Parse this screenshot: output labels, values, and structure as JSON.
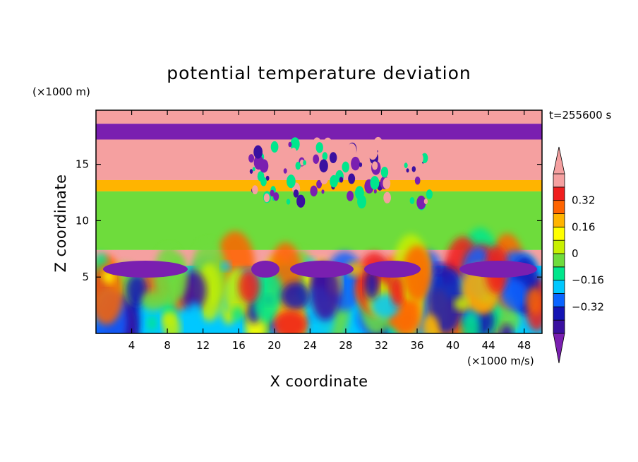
{
  "chart_data": {
    "type": "heatmap",
    "title": "potential temperature deviation",
    "xlabel": "X coordinate",
    "ylabel": "Z coordinate",
    "x_unit": "(×1000 m/s)",
    "y_unit": "(×1000 m)",
    "time_label": "t=255600 s",
    "xlim": [
      0,
      50
    ],
    "ylim": [
      0,
      19.8
    ],
    "x_ticks": [
      4,
      8,
      12,
      16,
      20,
      24,
      28,
      32,
      36,
      40,
      44,
      48
    ],
    "y_ticks": [
      5,
      10,
      15
    ],
    "colorbar": {
      "levels": [
        -0.48,
        -0.4,
        -0.32,
        -0.24,
        -0.16,
        -0.08,
        0,
        0.08,
        0.16,
        0.24,
        0.32,
        0.4,
        0.48
      ],
      "tick_labels": [
        {
          "value": 0.32,
          "label": "0.32"
        },
        {
          "value": 0.16,
          "label": "0.16"
        },
        {
          "value": 0,
          "label": "0"
        },
        {
          "value": -0.16,
          "label": "−0.16"
        },
        {
          "value": -0.32,
          "label": "−0.32"
        }
      ],
      "colors": [
        "#7a1fb0",
        "#3a10a0",
        "#1414b4",
        "#0a64ff",
        "#00c8ff",
        "#00e68c",
        "#6edc3c",
        "#c8f000",
        "#ffff00",
        "#ffb400",
        "#ff6400",
        "#f01e1e",
        "#f5a0a0"
      ],
      "extend": "both",
      "orientation": "vertical"
    },
    "field_description_bands": [
      {
        "z": [
          18.6,
          19.8
        ],
        "value": 0.5
      },
      {
        "z": [
          17.2,
          18.6
        ],
        "value": -0.5
      },
      {
        "z": [
          13.6,
          17.2
        ],
        "value": 0.5
      },
      {
        "z": [
          12.6,
          13.6
        ],
        "value": 0.2
      },
      {
        "z": [
          7.4,
          12.6
        ],
        "value": -0.02
      },
      {
        "z": [
          6.0,
          7.4
        ],
        "value": 0.5
      },
      {
        "z": [
          0,
          6.0
        ],
        "value": -0.2
      }
    ]
  }
}
